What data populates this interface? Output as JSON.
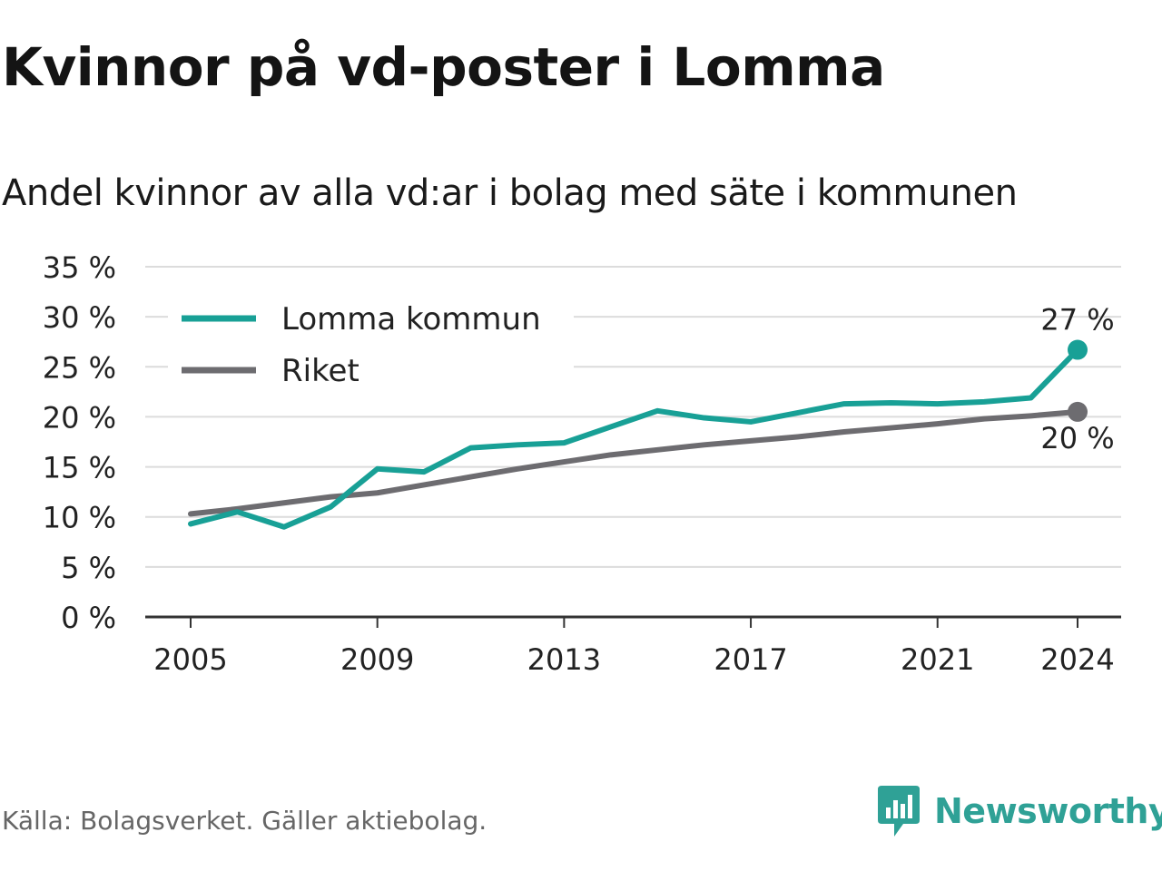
{
  "title": "Kvinnor på vd-poster i Lomma",
  "subtitle": "Andel kvinnor av alla vd:ar i bolag med säte i kommunen",
  "source": "Källa: Bolagsverket. Gäller aktiebolag.",
  "brand": {
    "name": "Newsworthy",
    "icon": "newsworthy-logo-icon",
    "color": "#2fa196"
  },
  "chart_data": {
    "type": "line",
    "x": [
      2005,
      2006,
      2007,
      2008,
      2009,
      2010,
      2011,
      2012,
      2013,
      2014,
      2015,
      2016,
      2017,
      2018,
      2019,
      2020,
      2021,
      2022,
      2023,
      2024
    ],
    "x_ticks": [
      2005,
      2009,
      2013,
      2017,
      2021,
      2024
    ],
    "x_tick_labels": [
      "2005",
      "2009",
      "2013",
      "2017",
      "2021",
      "2024"
    ],
    "y_ticks": [
      0,
      5,
      10,
      15,
      20,
      25,
      30,
      35
    ],
    "y_tick_labels": [
      "0 %",
      "5 %",
      "10 %",
      "15 %",
      "20 %",
      "25 %",
      "30 %",
      "35 %"
    ],
    "ylim": [
      0,
      35
    ],
    "xlim": [
      2005,
      2024
    ],
    "grid": true,
    "legend_position": "top-left",
    "series": [
      {
        "name": "Lomma kommun",
        "color": "#18a096",
        "values": [
          9.3,
          10.5,
          9.0,
          11.0,
          14.8,
          14.5,
          16.9,
          17.2,
          17.4,
          19.0,
          20.6,
          19.9,
          19.5,
          20.4,
          21.3,
          21.4,
          21.3,
          21.5,
          21.9,
          26.7
        ],
        "end_label": "27 %"
      },
      {
        "name": "Riket",
        "color": "#6d6c70",
        "values": [
          10.3,
          10.8,
          11.4,
          12.0,
          12.4,
          13.2,
          14.0,
          14.8,
          15.5,
          16.2,
          16.7,
          17.2,
          17.6,
          18.0,
          18.5,
          18.9,
          19.3,
          19.8,
          20.1,
          20.5
        ],
        "end_label": "20 %"
      }
    ]
  }
}
